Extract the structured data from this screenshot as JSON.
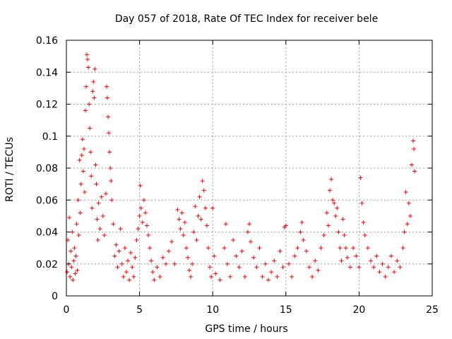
{
  "chart_data": {
    "type": "scatter",
    "title": "Day 057 of 2018, Rate Of TEC Index for receiver bele",
    "xlabel": "GPS time / hours",
    "ylabel": "ROTI / TECUs",
    "xlim": [
      0,
      25
    ],
    "ylim": [
      0,
      0.16
    ],
    "xticks": [
      0,
      5,
      10,
      15,
      20,
      25
    ],
    "yticks": [
      0,
      0.02,
      0.04,
      0.06,
      0.08,
      0.1,
      0.12,
      0.14,
      0.16
    ],
    "xtick_labels": [
      "0",
      "5",
      "10",
      "15",
      "20",
      "25"
    ],
    "ytick_labels": [
      "0",
      "0.02",
      "0.04",
      "0.06",
      "0.08",
      "0.1",
      "0.12",
      "0.14",
      "0.16"
    ],
    "grid": true,
    "marker": "plus",
    "color": "#ff0000",
    "series": [
      {
        "name": "ROTI",
        "points": [
          [
            0.05,
            0.015
          ],
          [
            0.1,
            0.035
          ],
          [
            0.15,
            0.02
          ],
          [
            0.2,
            0.049
          ],
          [
            0.25,
            0.012
          ],
          [
            0.3,
            0.028
          ],
          [
            0.35,
            0.018
          ],
          [
            0.4,
            0.04
          ],
          [
            0.45,
            0.01
          ],
          [
            0.5,
            0.022
          ],
          [
            0.55,
            0.03
          ],
          [
            0.6,
            0.014
          ],
          [
            0.65,
            0.025
          ],
          [
            0.7,
            0.045
          ],
          [
            0.75,
            0.016
          ],
          [
            0.8,
            0.06
          ],
          [
            0.85,
            0.038
          ],
          [
            0.9,
            0.085
          ],
          [
            0.95,
            0.052
          ],
          [
            1.0,
            0.07
          ],
          [
            1.05,
            0.088
          ],
          [
            1.1,
            0.098
          ],
          [
            1.15,
            0.078
          ],
          [
            1.2,
            0.092
          ],
          [
            1.25,
            0.065
          ],
          [
            1.3,
            0.116
          ],
          [
            1.35,
            0.131
          ],
          [
            1.4,
            0.151
          ],
          [
            1.45,
            0.148
          ],
          [
            1.5,
            0.143
          ],
          [
            1.55,
            0.12
          ],
          [
            1.6,
            0.105
          ],
          [
            1.65,
            0.09
          ],
          [
            1.7,
            0.075
          ],
          [
            1.75,
            0.055
          ],
          [
            1.8,
            0.128
          ],
          [
            1.85,
            0.134
          ],
          [
            1.9,
            0.124
          ],
          [
            1.95,
            0.142
          ],
          [
            2.0,
            0.082
          ],
          [
            2.05,
            0.07
          ],
          [
            2.1,
            0.048
          ],
          [
            2.15,
            0.035
          ],
          [
            2.2,
            0.058
          ],
          [
            2.3,
            0.042
          ],
          [
            2.4,
            0.062
          ],
          [
            2.5,
            0.05
          ],
          [
            2.6,
            0.038
          ],
          [
            2.7,
            0.064
          ],
          [
            2.75,
            0.131
          ],
          [
            2.8,
            0.124
          ],
          [
            2.85,
            0.112
          ],
          [
            2.9,
            0.102
          ],
          [
            2.95,
            0.09
          ],
          [
            3.0,
            0.08
          ],
          [
            3.05,
            0.072
          ],
          [
            3.1,
            0.06
          ],
          [
            3.2,
            0.045
          ],
          [
            3.3,
            0.025
          ],
          [
            3.4,
            0.032
          ],
          [
            3.5,
            0.018
          ],
          [
            3.6,
            0.028
          ],
          [
            3.7,
            0.042
          ],
          [
            3.8,
            0.02
          ],
          [
            3.9,
            0.012
          ],
          [
            4.0,
            0.03
          ],
          [
            4.1,
            0.015
          ],
          [
            4.2,
            0.022
          ],
          [
            4.3,
            0.01
          ],
          [
            4.4,
            0.027
          ],
          [
            4.5,
            0.018
          ],
          [
            4.6,
            0.012
          ],
          [
            4.7,
            0.024
          ],
          [
            4.8,
            0.035
          ],
          [
            4.9,
            0.042
          ],
          [
            5.0,
            0.05
          ],
          [
            5.05,
            0.069
          ],
          [
            5.1,
            0.055
          ],
          [
            5.2,
            0.046
          ],
          [
            5.3,
            0.06
          ],
          [
            5.4,
            0.052
          ],
          [
            5.5,
            0.044
          ],
          [
            5.6,
            0.038
          ],
          [
            5.7,
            0.03
          ],
          [
            5.8,
            0.022
          ],
          [
            5.9,
            0.015
          ],
          [
            6.0,
            0.01
          ],
          [
            6.2,
            0.018
          ],
          [
            6.4,
            0.012
          ],
          [
            6.6,
            0.024
          ],
          [
            6.8,
            0.02
          ],
          [
            7.0,
            0.028
          ],
          [
            7.2,
            0.034
          ],
          [
            7.4,
            0.02
          ],
          [
            7.6,
            0.054
          ],
          [
            7.7,
            0.048
          ],
          [
            7.8,
            0.042
          ],
          [
            7.9,
            0.052
          ],
          [
            8.0,
            0.038
          ],
          [
            8.1,
            0.046
          ],
          [
            8.2,
            0.03
          ],
          [
            8.3,
            0.024
          ],
          [
            8.4,
            0.016
          ],
          [
            8.5,
            0.012
          ],
          [
            8.6,
            0.02
          ],
          [
            8.7,
            0.04
          ],
          [
            8.8,
            0.056
          ],
          [
            8.9,
            0.035
          ],
          [
            9.0,
            0.05
          ],
          [
            9.1,
            0.062
          ],
          [
            9.2,
            0.048
          ],
          [
            9.3,
            0.072
          ],
          [
            9.4,
            0.066
          ],
          [
            9.5,
            0.055
          ],
          [
            9.6,
            0.044
          ],
          [
            9.7,
            0.03
          ],
          [
            9.8,
            0.018
          ],
          [
            9.9,
            0.012
          ],
          [
            10.0,
            0.055
          ],
          [
            10.1,
            0.025
          ],
          [
            10.2,
            0.014
          ],
          [
            10.5,
            0.01
          ],
          [
            10.8,
            0.03
          ],
          [
            10.9,
            0.045
          ],
          [
            11.0,
            0.02
          ],
          [
            11.2,
            0.012
          ],
          [
            11.4,
            0.035
          ],
          [
            11.6,
            0.025
          ],
          [
            11.8,
            0.018
          ],
          [
            12.0,
            0.028
          ],
          [
            12.2,
            0.012
          ],
          [
            12.4,
            0.04
          ],
          [
            12.5,
            0.045
          ],
          [
            12.6,
            0.034
          ],
          [
            12.8,
            0.024
          ],
          [
            13.0,
            0.018
          ],
          [
            13.2,
            0.03
          ],
          [
            13.4,
            0.012
          ],
          [
            13.6,
            0.02
          ],
          [
            13.8,
            0.01
          ],
          [
            14.0,
            0.015
          ],
          [
            14.2,
            0.022
          ],
          [
            14.4,
            0.012
          ],
          [
            14.6,
            0.028
          ],
          [
            14.8,
            0.018
          ],
          [
            14.9,
            0.043
          ],
          [
            15.0,
            0.044
          ],
          [
            15.2,
            0.02
          ],
          [
            15.4,
            0.012
          ],
          [
            15.6,
            0.025
          ],
          [
            15.8,
            0.03
          ],
          [
            16.0,
            0.04
          ],
          [
            16.1,
            0.046
          ],
          [
            16.2,
            0.035
          ],
          [
            16.4,
            0.028
          ],
          [
            16.6,
            0.018
          ],
          [
            16.8,
            0.012
          ],
          [
            17.0,
            0.022
          ],
          [
            17.2,
            0.016
          ],
          [
            17.4,
            0.03
          ],
          [
            17.6,
            0.038
          ],
          [
            17.8,
            0.052
          ],
          [
            17.9,
            0.044
          ],
          [
            18.0,
            0.066
          ],
          [
            18.1,
            0.073
          ],
          [
            18.2,
            0.06
          ],
          [
            18.3,
            0.058
          ],
          [
            18.4,
            0.05
          ],
          [
            18.5,
            0.055
          ],
          [
            18.6,
            0.04
          ],
          [
            18.7,
            0.03
          ],
          [
            18.8,
            0.022
          ],
          [
            18.9,
            0.048
          ],
          [
            19.0,
            0.038
          ],
          [
            19.1,
            0.03
          ],
          [
            19.2,
            0.024
          ],
          [
            19.4,
            0.018
          ],
          [
            19.6,
            0.03
          ],
          [
            19.8,
            0.025
          ],
          [
            20.0,
            0.018
          ],
          [
            20.1,
            0.074
          ],
          [
            20.2,
            0.058
          ],
          [
            20.3,
            0.046
          ],
          [
            20.4,
            0.038
          ],
          [
            20.6,
            0.03
          ],
          [
            20.8,
            0.022
          ],
          [
            21.0,
            0.018
          ],
          [
            21.2,
            0.025
          ],
          [
            21.4,
            0.015
          ],
          [
            21.6,
            0.02
          ],
          [
            21.8,
            0.012
          ],
          [
            22.0,
            0.018
          ],
          [
            22.2,
            0.025
          ],
          [
            22.4,
            0.015
          ],
          [
            22.6,
            0.022
          ],
          [
            22.8,
            0.018
          ],
          [
            23.0,
            0.03
          ],
          [
            23.1,
            0.04
          ],
          [
            23.2,
            0.065
          ],
          [
            23.3,
            0.045
          ],
          [
            23.4,
            0.058
          ],
          [
            23.5,
            0.05
          ],
          [
            23.6,
            0.082
          ],
          [
            23.7,
            0.097
          ],
          [
            23.75,
            0.092
          ],
          [
            23.8,
            0.078
          ]
        ]
      }
    ]
  }
}
